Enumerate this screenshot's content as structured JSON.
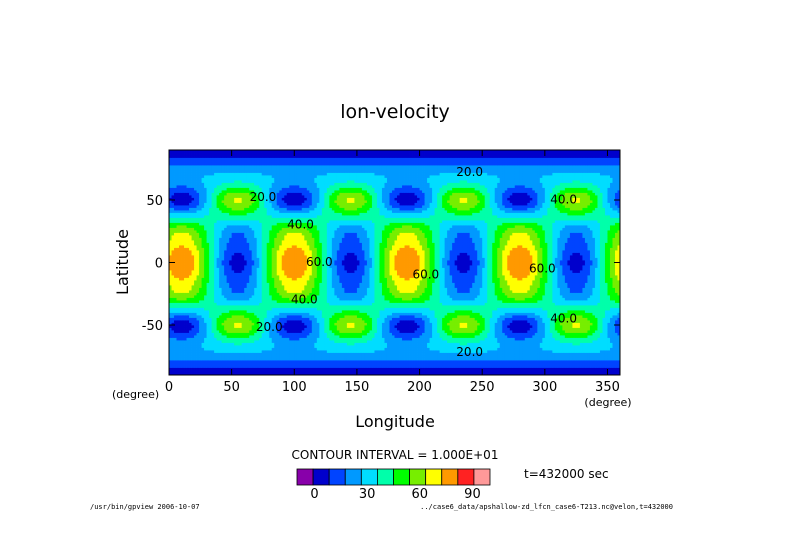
{
  "chart_data": {
    "type": "heatmap",
    "title": "lon-velocity",
    "xlabel": "Longitude",
    "ylabel": "Latitude",
    "x_unit": "(degree)",
    "y_unit": "(degree)",
    "xlim": [
      0,
      360
    ],
    "ylim": [
      -90,
      90
    ],
    "x_ticks": [
      0,
      50,
      100,
      150,
      200,
      250,
      300,
      350
    ],
    "y_ticks": [
      50,
      0,
      -50
    ],
    "x_tick_labels": [
      "0",
      "50",
      "100",
      "150",
      "200",
      "250",
      "300",
      "350"
    ],
    "y_tick_labels": [
      "50",
      "0",
      "-50"
    ],
    "contour_interval_text": "CONTOUR INTERVAL = 1.000E+01",
    "contour_interval": 10,
    "contour_labels": [
      {
        "text": "20.0",
        "lon": 240,
        "lat": 72
      },
      {
        "text": "20.0",
        "lon": 75,
        "lat": 52
      },
      {
        "text": "40.0",
        "lon": 105,
        "lat": 30
      },
      {
        "text": "40.0",
        "lon": 315,
        "lat": 50
      },
      {
        "text": "60.0",
        "lon": 120,
        "lat": 0
      },
      {
        "text": "60.0",
        "lon": 205,
        "lat": -10
      },
      {
        "text": "60.0",
        "lon": 298,
        "lat": -5
      },
      {
        "text": "40.0",
        "lon": 108,
        "lat": -30
      },
      {
        "text": "40.0",
        "lon": 315,
        "lat": -45
      },
      {
        "text": "20.0",
        "lon": 80,
        "lat": -52
      },
      {
        "text": "20.0",
        "lon": 240,
        "lat": -72
      }
    ],
    "field_features": {
      "max_centers_lon": [
        10,
        100,
        190,
        280
      ],
      "max_center_lat": 0,
      "max_value_approx": 95,
      "equatorial_min_lon": [
        55,
        145,
        235,
        325
      ],
      "midlat_min_lon": [
        10,
        100,
        190,
        280
      ],
      "midlat_min_lat": [
        50,
        -50
      ],
      "polar_value_approx": 5
    },
    "colorbar": {
      "levels": [
        -10,
        0,
        10,
        20,
        30,
        40,
        50,
        60,
        70,
        80,
        90,
        100
      ],
      "colors": [
        "#8800aa",
        "#0000cc",
        "#0044ff",
        "#0099ff",
        "#00ddff",
        "#00ffaa",
        "#00ff00",
        "#77ee00",
        "#ffff00",
        "#ff9900",
        "#ff2222",
        "#ff9999"
      ],
      "tick_values": [
        0,
        30,
        60,
        90
      ],
      "tick_labels": [
        "0",
        "30",
        "60",
        "90"
      ]
    },
    "time_label": "t=432000 sec",
    "legend": "none",
    "grid": false
  },
  "footer": {
    "left": "/usr/bin/gpview  2006-10-07",
    "right": "../case6_data/apshallow-zd_lfcn_case6-T213.nc@velon,t=432000"
  }
}
